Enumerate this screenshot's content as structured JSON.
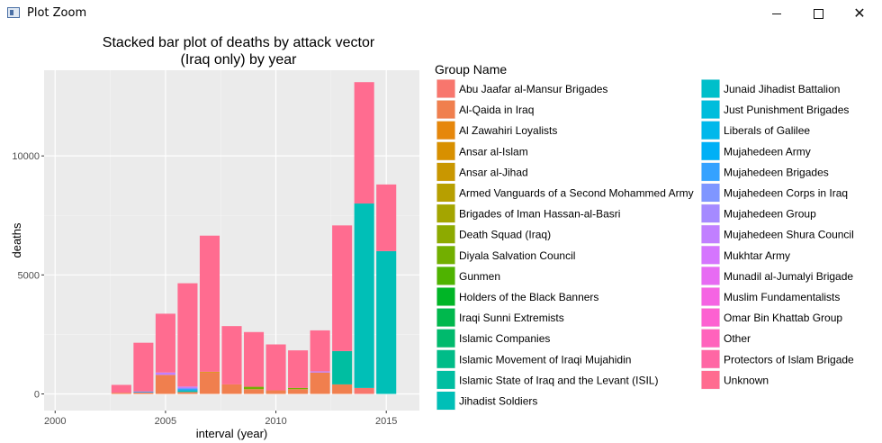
{
  "window": {
    "title": "Plot Zoom"
  },
  "chart_data": {
    "type": "bar",
    "stacked": true,
    "title": "Stacked bar plot of deaths by attack vector\n(Iraq only) by year",
    "xlabel": "interval (year)",
    "ylabel": "deaths",
    "xlim": [
      1999.5,
      2016.5
    ],
    "ylim": [
      -700,
      13600
    ],
    "xticks": [
      2000,
      2005,
      2010,
      2015
    ],
    "yticks": [
      0,
      5000,
      10000
    ],
    "grid": true,
    "legend_title": "Group Name",
    "legend_position": "right",
    "groups": [
      {
        "name": "Abu Jaafar al-Mansur Brigades",
        "color": "#F8766D"
      },
      {
        "name": "Al-Qaida in Iraq",
        "color": "#F07F4E"
      },
      {
        "name": "Al Zawahiri Loyalists",
        "color": "#E6870B"
      },
      {
        "name": "Ansar al-Islam",
        "color": "#D89000"
      },
      {
        "name": "Ansar al-Jihad",
        "color": "#C99700"
      },
      {
        "name": "Armed Vanguards of a Second Mohammed Army",
        "color": "#B79F00"
      },
      {
        "name": "Brigades of Iman Hassan-al-Basri",
        "color": "#A4A500"
      },
      {
        "name": "Death Squad (Iraq)",
        "color": "#8DAA00"
      },
      {
        "name": "Diyala Salvation Council",
        "color": "#72AF00"
      },
      {
        "name": "Gunmen",
        "color": "#4FB300"
      },
      {
        "name": "Holders of the Black Banners",
        "color": "#00B526"
      },
      {
        "name": "Iraqi Sunni Extremists",
        "color": "#00B84D"
      },
      {
        "name": "Islamic Companies",
        "color": "#00BA6D"
      },
      {
        "name": "Islamic Movement of Iraqi Mujahidin",
        "color": "#00BC88"
      },
      {
        "name": "Islamic State of Iraq and the Levant (ISIL)",
        "color": "#00BEA1"
      },
      {
        "name": "Jihadist Soldiers",
        "color": "#00BFB7"
      },
      {
        "name": "Junaid Jihadist Battalion",
        "color": "#00BFCA"
      },
      {
        "name": "Just Punishment Brigades",
        "color": "#00BDDC"
      },
      {
        "name": "Liberals of Galilee",
        "color": "#00B8EB"
      },
      {
        "name": "Mujahedeen Army",
        "color": "#00B0F6"
      },
      {
        "name": "Mujahedeen Brigades",
        "color": "#35A2FF"
      },
      {
        "name": "Mujahedeen Corps in Iraq",
        "color": "#7F96FF"
      },
      {
        "name": "Mujahedeen Group",
        "color": "#A58AFF"
      },
      {
        "name": "Mujahedeen Shura Council",
        "color": "#C17FFF"
      },
      {
        "name": "Mukhtar Army",
        "color": "#D575FE"
      },
      {
        "name": "Munadil al-Jumalyi Brigade",
        "color": "#E76BF3"
      },
      {
        "name": "Muslim Fundamentalists",
        "color": "#F564E3"
      },
      {
        "name": "Omar Bin Khattab Group",
        "color": "#FD61D1"
      },
      {
        "name": "Other",
        "color": "#FF63BC"
      },
      {
        "name": "Protectors of Islam Brigade",
        "color": "#FF67A4"
      },
      {
        "name": "Unknown",
        "color": "#FF6C90"
      }
    ],
    "bars": [
      {
        "year": 2003,
        "segments": [
          {
            "group": "Al-Qaida in Iraq",
            "value": 50
          },
          {
            "group": "Unknown",
            "value": 330
          }
        ]
      },
      {
        "year": 2004,
        "segments": [
          {
            "group": "Al-Qaida in Iraq",
            "value": 60
          },
          {
            "group": "Mujahedeen Brigades",
            "value": 40
          },
          {
            "group": "Unknown",
            "value": 2050
          }
        ]
      },
      {
        "year": 2005,
        "segments": [
          {
            "group": "Al-Qaida in Iraq",
            "value": 800
          },
          {
            "group": "Mujahedeen Shura Council",
            "value": 100
          },
          {
            "group": "Unknown",
            "value": 2470
          }
        ]
      },
      {
        "year": 2006,
        "segments": [
          {
            "group": "Al-Qaida in Iraq",
            "value": 80
          },
          {
            "group": "Jihadist Soldiers",
            "value": 70
          },
          {
            "group": "Mujahedeen Brigades",
            "value": 80
          },
          {
            "group": "Mujahedeen Shura Council",
            "value": 80
          },
          {
            "group": "Unknown",
            "value": 4340
          }
        ]
      },
      {
        "year": 2007,
        "segments": [
          {
            "group": "Al-Qaida in Iraq",
            "value": 900
          },
          {
            "group": "Ansar al-Islam",
            "value": 30
          },
          {
            "group": "Unknown",
            "value": 5720
          }
        ]
      },
      {
        "year": 2008,
        "segments": [
          {
            "group": "Al-Qaida in Iraq",
            "value": 400
          },
          {
            "group": "Unknown",
            "value": 2450
          }
        ]
      },
      {
        "year": 2009,
        "segments": [
          {
            "group": "Al-Qaida in Iraq",
            "value": 200
          },
          {
            "group": "Diyala Salvation Council",
            "value": 100
          },
          {
            "group": "Unknown",
            "value": 2300
          }
        ]
      },
      {
        "year": 2010,
        "segments": [
          {
            "group": "Al-Qaida in Iraq",
            "value": 150
          },
          {
            "group": "Unknown",
            "value": 1930
          }
        ]
      },
      {
        "year": 2011,
        "segments": [
          {
            "group": "Al-Qaida in Iraq",
            "value": 200
          },
          {
            "group": "Diyala Salvation Council",
            "value": 50
          },
          {
            "group": "Unknown",
            "value": 1580
          }
        ]
      },
      {
        "year": 2012,
        "segments": [
          {
            "group": "Al-Qaida in Iraq",
            "value": 900
          },
          {
            "group": "Mujahedeen Shura Council",
            "value": 50
          },
          {
            "group": "Unknown",
            "value": 1720
          }
        ]
      },
      {
        "year": 2013,
        "segments": [
          {
            "group": "Al-Qaida in Iraq",
            "value": 400
          },
          {
            "group": "Islamic State of Iraq and the Levant (ISIL)",
            "value": 1400
          },
          {
            "group": "Unknown",
            "value": 5280
          }
        ]
      },
      {
        "year": 2014,
        "segments": [
          {
            "group": "Abu Jaafar al-Mansur Brigades",
            "value": 250
          },
          {
            "group": "Jihadist Soldiers",
            "value": 7750
          },
          {
            "group": "Unknown",
            "value": 5100
          }
        ]
      },
      {
        "year": 2015,
        "segments": [
          {
            "group": "Jihadist Soldiers",
            "value": 6000
          },
          {
            "group": "Unknown",
            "value": 2800
          }
        ]
      }
    ]
  }
}
